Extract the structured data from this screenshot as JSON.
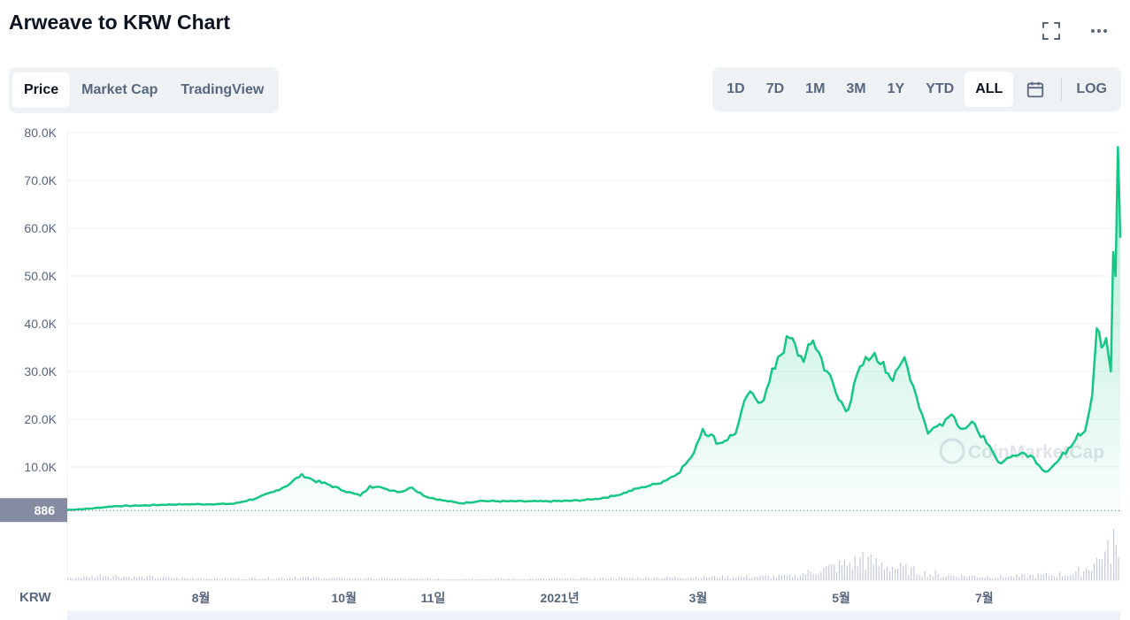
{
  "header": {
    "title": "Arweave to KRW Chart"
  },
  "icons": {
    "fullscreen": "fullscreen-icon",
    "more": "more-horizontal-icon",
    "calendar": "calendar-icon"
  },
  "tabs": [
    {
      "label": "Price",
      "active": true
    },
    {
      "label": "Market Cap",
      "active": false
    },
    {
      "label": "TradingView",
      "active": false
    }
  ],
  "ranges": [
    {
      "label": "1D",
      "active": false
    },
    {
      "label": "7D",
      "active": false
    },
    {
      "label": "1M",
      "active": false
    },
    {
      "label": "3M",
      "active": false
    },
    {
      "label": "1Y",
      "active": false
    },
    {
      "label": "YTD",
      "active": false
    },
    {
      "label": "ALL",
      "active": true
    }
  ],
  "log_label": "LOG",
  "currency_label": "KRW",
  "watermark": "CoinMarketCap",
  "colors": {
    "line": "#16c784",
    "text_muted": "#58667e",
    "panel_bg": "#eff2f5",
    "current_badge": "#858ca2"
  },
  "chart_data": {
    "type": "area",
    "yticks": [
      "10.0K",
      "20.0K",
      "30.0K",
      "40.0K",
      "50.0K",
      "60.0K",
      "70.0K",
      "80.0K"
    ],
    "ytick_values": [
      10000,
      20000,
      30000,
      40000,
      50000,
      60000,
      70000,
      80000
    ],
    "ylim": [
      0,
      80000
    ],
    "xlim": [
      "2020-06-05",
      "2021-08-28"
    ],
    "xticks": [
      {
        "label": "8월",
        "date": "2020-08-01"
      },
      {
        "label": "10월",
        "date": "2020-10-01"
      },
      {
        "label": "11일",
        "date": "2020-11-08"
      },
      {
        "label": "2021년",
        "date": "2021-01-01"
      },
      {
        "label": "3월",
        "date": "2021-03-01"
      },
      {
        "label": "5월",
        "date": "2021-05-01"
      },
      {
        "label": "7월",
        "date": "2021-07-01"
      }
    ],
    "current_price_label": "886",
    "current_price_value": 886,
    "grid": true,
    "series": [
      {
        "points": [
          [
            "2020-06-05",
            1000
          ],
          [
            "2020-06-15",
            1300
          ],
          [
            "2020-06-25",
            1800
          ],
          [
            "2020-07-05",
            1900
          ],
          [
            "2020-07-15",
            2100
          ],
          [
            "2020-07-25",
            2200
          ],
          [
            "2020-08-05",
            2200
          ],
          [
            "2020-08-15",
            2300
          ],
          [
            "2020-08-25",
            3500
          ],
          [
            "2020-09-01",
            4800
          ],
          [
            "2020-09-08",
            6500
          ],
          [
            "2020-09-13",
            8500
          ],
          [
            "2020-09-18",
            7200
          ],
          [
            "2020-09-25",
            6200
          ],
          [
            "2020-10-01",
            5000
          ],
          [
            "2020-10-08",
            4000
          ],
          [
            "2020-10-12",
            6000
          ],
          [
            "2020-10-18",
            5500
          ],
          [
            "2020-10-25",
            4800
          ],
          [
            "2020-10-30",
            5700
          ],
          [
            "2020-11-05",
            3800
          ],
          [
            "2020-11-12",
            3000
          ],
          [
            "2020-11-20",
            2400
          ],
          [
            "2020-11-28",
            2900
          ],
          [
            "2020-12-10",
            2800
          ],
          [
            "2020-12-25",
            2800
          ],
          [
            "2021-01-05",
            2900
          ],
          [
            "2021-01-15",
            3200
          ],
          [
            "2021-01-25",
            4000
          ],
          [
            "2021-02-05",
            5800
          ],
          [
            "2021-02-12",
            6500
          ],
          [
            "2021-02-20",
            8500
          ],
          [
            "2021-02-26",
            12000
          ],
          [
            "2021-03-03",
            18000
          ],
          [
            "2021-03-10",
            15000
          ],
          [
            "2021-03-17",
            17000
          ],
          [
            "2021-03-22",
            25000
          ],
          [
            "2021-03-29",
            24000
          ],
          [
            "2021-04-04",
            33000
          ],
          [
            "2021-04-09",
            37000
          ],
          [
            "2021-04-15",
            32000
          ],
          [
            "2021-04-19",
            36500
          ],
          [
            "2021-04-25",
            30000
          ],
          [
            "2021-04-30",
            24000
          ],
          [
            "2021-05-04",
            22000
          ],
          [
            "2021-05-09",
            31000
          ],
          [
            "2021-05-14",
            33000
          ],
          [
            "2021-05-19",
            32000
          ],
          [
            "2021-05-23",
            28000
          ],
          [
            "2021-05-28",
            33000
          ],
          [
            "2021-06-02",
            25000
          ],
          [
            "2021-06-07",
            17000
          ],
          [
            "2021-06-12",
            19000
          ],
          [
            "2021-06-17",
            21000
          ],
          [
            "2021-06-22",
            18000
          ],
          [
            "2021-06-27",
            19000
          ],
          [
            "2021-07-02",
            15000
          ],
          [
            "2021-07-07",
            11000
          ],
          [
            "2021-07-12",
            12000
          ],
          [
            "2021-07-17",
            13000
          ],
          [
            "2021-07-22",
            12000
          ],
          [
            "2021-07-27",
            9000
          ],
          [
            "2021-08-01",
            11000
          ],
          [
            "2021-08-06",
            14000
          ],
          [
            "2021-08-10",
            17000
          ],
          [
            "2021-08-13",
            17500
          ],
          [
            "2021-08-16",
            25000
          ],
          [
            "2021-08-18",
            39000
          ],
          [
            "2021-08-20",
            35000
          ],
          [
            "2021-08-22",
            37000
          ],
          [
            "2021-08-24",
            30000
          ],
          [
            "2021-08-25",
            55000
          ],
          [
            "2021-08-26",
            50000
          ],
          [
            "2021-08-27",
            77000
          ],
          [
            "2021-08-27T12",
            68000
          ],
          [
            "2021-08-28",
            58000
          ]
        ]
      }
    ],
    "volume_bars": [
      [
        "2020-06-05",
        0.05
      ],
      [
        "2020-06-20",
        0.15
      ],
      [
        "2020-07-10",
        0.08
      ],
      [
        "2020-08-10",
        0.05
      ],
      [
        "2020-09-10",
        0.08
      ],
      [
        "2020-10-10",
        0.05
      ],
      [
        "2020-11-10",
        0.04
      ],
      [
        "2020-12-10",
        0.04
      ],
      [
        "2021-01-10",
        0.05
      ],
      [
        "2021-02-10",
        0.08
      ],
      [
        "2021-03-10",
        0.1
      ],
      [
        "2021-04-10",
        0.12
      ],
      [
        "2021-05-10",
        0.6
      ],
      [
        "2021-06-10",
        0.15
      ],
      [
        "2021-07-10",
        0.1
      ],
      [
        "2021-08-10",
        0.2
      ],
      [
        "2021-08-20",
        0.7
      ],
      [
        "2021-08-25",
        1.0
      ],
      [
        "2021-08-28",
        0.45
      ]
    ]
  }
}
